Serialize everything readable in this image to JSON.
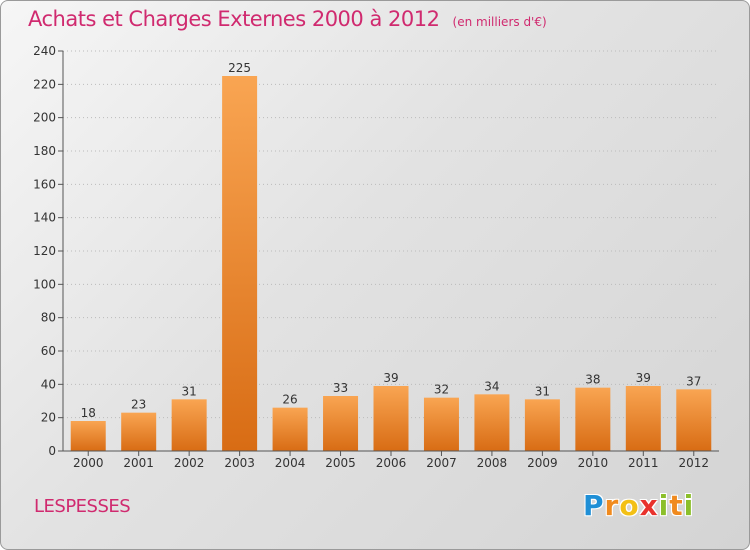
{
  "header": {
    "title": "Achats et Charges Externes 2000 à 2012",
    "unit": "(en milliers d'€)"
  },
  "commune": "LESPESSES",
  "logo": {
    "letters": [
      "P",
      "r",
      "o",
      "x",
      "i",
      "t",
      "i"
    ],
    "colors": [
      "#1f8fd6",
      "#f08a1e",
      "#f3c015",
      "#e8322d",
      "#8bbf2a",
      "#f08a1e",
      "#8bbf2a"
    ]
  },
  "colors": {
    "bar_light": "#f9a552",
    "bar_dark": "#d86c14",
    "axis": "#555555",
    "grid": "#bbbbbb"
  },
  "chart_data": {
    "type": "bar",
    "categories": [
      "2000",
      "2001",
      "2002",
      "2003",
      "2004",
      "2005",
      "2006",
      "2007",
      "2008",
      "2009",
      "2010",
      "2011",
      "2012"
    ],
    "values": [
      18,
      23,
      31,
      225,
      26,
      33,
      39,
      32,
      34,
      31,
      38,
      39,
      37
    ],
    "ylim": [
      0,
      240
    ],
    "yticks": [
      0,
      20,
      40,
      60,
      80,
      100,
      120,
      140,
      160,
      180,
      200,
      220,
      240
    ],
    "grid": true,
    "data_labels": true
  }
}
